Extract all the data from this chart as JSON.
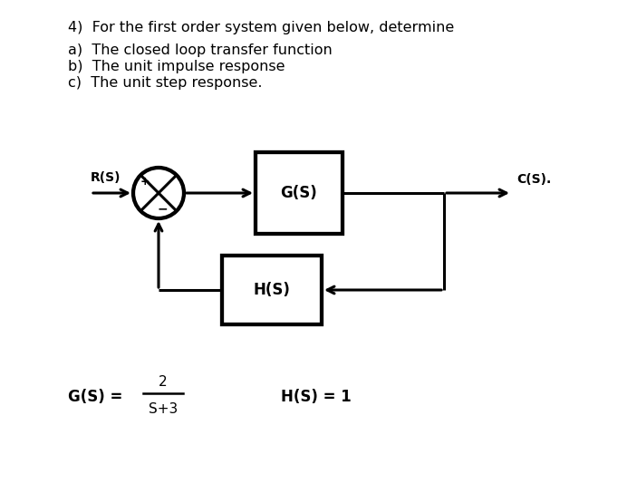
{
  "title_line": "4)  For the first order system given below, determine",
  "item_a": "a)  The closed loop transfer function",
  "item_b": "b)  The unit impulse response",
  "item_c": "c)  The unit step response.",
  "gs_label": "G(S)",
  "hs_label": "H(S)",
  "rs_label": "R(S)",
  "cs_label": "C(S).",
  "gs_eq_num": "2",
  "gs_eq_den": "S+3",
  "gs_eq_prefix": "G(S) = ",
  "hs_eq": "H(S) = 1",
  "bg_color": "#ffffff",
  "text_color": "#000000",
  "line_color": "#000000",
  "lw": 2.2,
  "fig_w": 7.03,
  "fig_h": 5.33
}
